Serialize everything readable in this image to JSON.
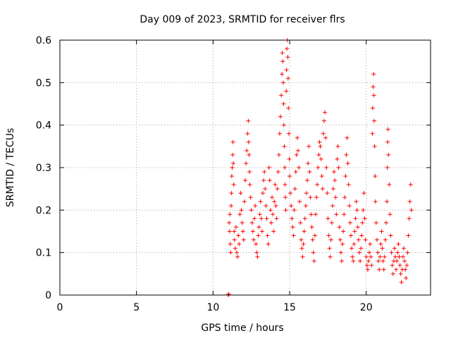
{
  "chart_data": {
    "type": "scatter",
    "title": "Day 009 of 2023, SRMTID for receiver flrs",
    "xlabel": "GPS time / hours",
    "ylabel": "SRMTID / TECUs",
    "xlim": [
      0,
      24.2
    ],
    "ylim": [
      0,
      0.6
    ],
    "x_ticks": [
      0,
      5,
      10,
      15,
      20
    ],
    "y_ticks": [
      0,
      0.1,
      0.2,
      0.3,
      0.4,
      0.5,
      0.6
    ],
    "x_tick_labels": [
      "0",
      "5",
      "10",
      "15",
      "20"
    ],
    "y_tick_labels": [
      "0",
      "0.1",
      "0.2",
      "0.3",
      "0.4",
      "0.5",
      "0.6"
    ],
    "grid": true,
    "marker": "plus",
    "marker_color": "#ff0000",
    "series": [
      {
        "name": "SRMTID",
        "points": [
          [
            11.0,
            0.0
          ],
          [
            11.0,
            0.001
          ],
          [
            11.02,
            0.002
          ],
          [
            11.05,
            0.17
          ],
          [
            11.08,
            0.15
          ],
          [
            11.1,
            0.19
          ],
          [
            11.12,
            0.12
          ],
          [
            11.15,
            0.1
          ],
          [
            11.18,
            0.21
          ],
          [
            11.2,
            0.24
          ],
          [
            11.22,
            0.28
          ],
          [
            11.25,
            0.3
          ],
          [
            11.28,
            0.33
          ],
          [
            11.3,
            0.36
          ],
          [
            11.32,
            0.31
          ],
          [
            11.35,
            0.26
          ],
          [
            11.38,
            0.15
          ],
          [
            11.4,
            0.13
          ],
          [
            11.45,
            0.11
          ],
          [
            11.5,
            0.16
          ],
          [
            11.55,
            0.1
          ],
          [
            11.6,
            0.09
          ],
          [
            11.65,
            0.14
          ],
          [
            11.7,
            0.12
          ],
          [
            11.75,
            0.19
          ],
          [
            11.8,
            0.24
          ],
          [
            11.85,
            0.2
          ],
          [
            11.9,
            0.17
          ],
          [
            11.95,
            0.15
          ],
          [
            12.0,
            0.13
          ],
          [
            12.05,
            0.22
          ],
          [
            12.1,
            0.27
          ],
          [
            12.15,
            0.31
          ],
          [
            12.2,
            0.34
          ],
          [
            12.25,
            0.38
          ],
          [
            12.3,
            0.41
          ],
          [
            12.32,
            0.36
          ],
          [
            12.35,
            0.33
          ],
          [
            12.38,
            0.29
          ],
          [
            12.4,
            0.26
          ],
          [
            12.45,
            0.23
          ],
          [
            12.5,
            0.2
          ],
          [
            12.55,
            0.17
          ],
          [
            12.6,
            0.15
          ],
          [
            12.65,
            0.13
          ],
          [
            12.7,
            0.18
          ],
          [
            12.75,
            0.21
          ],
          [
            12.8,
            0.12
          ],
          [
            12.85,
            0.1
          ],
          [
            12.9,
            0.09
          ],
          [
            12.95,
            0.14
          ],
          [
            13.0,
            0.16
          ],
          [
            13.05,
            0.19
          ],
          [
            13.1,
            0.22
          ],
          [
            13.15,
            0.18
          ],
          [
            13.2,
            0.15
          ],
          [
            13.25,
            0.24
          ],
          [
            13.3,
            0.27
          ],
          [
            13.35,
            0.29
          ],
          [
            13.4,
            0.25
          ],
          [
            13.45,
            0.21
          ],
          [
            13.5,
            0.18
          ],
          [
            13.55,
            0.14
          ],
          [
            13.6,
            0.12
          ],
          [
            13.65,
            0.3
          ],
          [
            13.7,
            0.27
          ],
          [
            13.75,
            0.2
          ],
          [
            13.8,
            0.17
          ],
          [
            13.85,
            0.23
          ],
          [
            13.9,
            0.19
          ],
          [
            13.95,
            0.15
          ],
          [
            14.0,
            0.22
          ],
          [
            14.05,
            0.26
          ],
          [
            14.1,
            0.21
          ],
          [
            14.15,
            0.18
          ],
          [
            14.2,
            0.25
          ],
          [
            14.25,
            0.29
          ],
          [
            14.3,
            0.33
          ],
          [
            14.35,
            0.38
          ],
          [
            14.4,
            0.42
          ],
          [
            14.45,
            0.47
          ],
          [
            14.5,
            0.52
          ],
          [
            14.52,
            0.57
          ],
          [
            14.55,
            0.55
          ],
          [
            14.58,
            0.5
          ],
          [
            14.6,
            0.45
          ],
          [
            14.62,
            0.4
          ],
          [
            14.65,
            0.35
          ],
          [
            14.68,
            0.3
          ],
          [
            14.7,
            0.26
          ],
          [
            14.72,
            0.23
          ],
          [
            14.75,
            0.2
          ],
          [
            14.78,
            0.48
          ],
          [
            14.8,
            0.53
          ],
          [
            14.82,
            0.58
          ],
          [
            14.85,
            0.6
          ],
          [
            14.88,
            0.56
          ],
          [
            14.9,
            0.51
          ],
          [
            14.92,
            0.44
          ],
          [
            14.95,
            0.38
          ],
          [
            14.98,
            0.32
          ],
          [
            15.0,
            0.28
          ],
          [
            15.05,
            0.24
          ],
          [
            15.1,
            0.21
          ],
          [
            15.15,
            0.18
          ],
          [
            15.2,
            0.16
          ],
          [
            15.25,
            0.14
          ],
          [
            15.3,
            0.2
          ],
          [
            15.35,
            0.25
          ],
          [
            15.4,
            0.29
          ],
          [
            15.45,
            0.33
          ],
          [
            15.5,
            0.37
          ],
          [
            15.55,
            0.34
          ],
          [
            15.6,
            0.3
          ],
          [
            15.65,
            0.22
          ],
          [
            15.7,
            0.17
          ],
          [
            15.75,
            0.13
          ],
          [
            15.8,
            0.11
          ],
          [
            15.85,
            0.09
          ],
          [
            15.9,
            0.12
          ],
          [
            15.95,
            0.15
          ],
          [
            16.0,
            0.18
          ],
          [
            16.05,
            0.21
          ],
          [
            16.1,
            0.24
          ],
          [
            16.15,
            0.27
          ],
          [
            16.2,
            0.31
          ],
          [
            16.25,
            0.35
          ],
          [
            16.3,
            0.29
          ],
          [
            16.35,
            0.23
          ],
          [
            16.4,
            0.19
          ],
          [
            16.45,
            0.16
          ],
          [
            16.5,
            0.13
          ],
          [
            16.55,
            0.1
          ],
          [
            16.6,
            0.08
          ],
          [
            16.65,
            0.14
          ],
          [
            16.7,
            0.19
          ],
          [
            16.75,
            0.23
          ],
          [
            16.8,
            0.26
          ],
          [
            16.85,
            0.3
          ],
          [
            16.9,
            0.33
          ],
          [
            16.95,
            0.36
          ],
          [
            17.0,
            0.35
          ],
          [
            17.05,
            0.32
          ],
          [
            17.1,
            0.28
          ],
          [
            17.15,
            0.25
          ],
          [
            17.2,
            0.38
          ],
          [
            17.25,
            0.41
          ],
          [
            17.3,
            0.43
          ],
          [
            17.35,
            0.37
          ],
          [
            17.4,
            0.3
          ],
          [
            17.45,
            0.24
          ],
          [
            17.5,
            0.18
          ],
          [
            17.55,
            0.14
          ],
          [
            17.6,
            0.11
          ],
          [
            17.65,
            0.09
          ],
          [
            17.7,
            0.13
          ],
          [
            17.75,
            0.17
          ],
          [
            17.8,
            0.21
          ],
          [
            17.85,
            0.25
          ],
          [
            17.9,
            0.29
          ],
          [
            17.95,
            0.27
          ],
          [
            18.0,
            0.23
          ],
          [
            18.05,
            0.19
          ],
          [
            18.1,
            0.32
          ],
          [
            18.15,
            0.35
          ],
          [
            18.2,
            0.3
          ],
          [
            18.25,
            0.16
          ],
          [
            18.3,
            0.13
          ],
          [
            18.35,
            0.1
          ],
          [
            18.4,
            0.08
          ],
          [
            18.45,
            0.12
          ],
          [
            18.5,
            0.15
          ],
          [
            18.55,
            0.19
          ],
          [
            18.6,
            0.23
          ],
          [
            18.65,
            0.28
          ],
          [
            18.7,
            0.33
          ],
          [
            18.75,
            0.37
          ],
          [
            18.8,
            0.31
          ],
          [
            18.85,
            0.26
          ],
          [
            18.9,
            0.21
          ],
          [
            18.95,
            0.17
          ],
          [
            19.0,
            0.14
          ],
          [
            19.05,
            0.11
          ],
          [
            19.1,
            0.09
          ],
          [
            19.15,
            0.08
          ],
          [
            19.2,
            0.12
          ],
          [
            19.25,
            0.15
          ],
          [
            19.3,
            0.18
          ],
          [
            19.35,
            0.22
          ],
          [
            19.4,
            0.2
          ],
          [
            19.45,
            0.16
          ],
          [
            19.5,
            0.13
          ],
          [
            19.55,
            0.1
          ],
          [
            19.6,
            0.08
          ],
          [
            19.65,
            0.11
          ],
          [
            19.7,
            0.14
          ],
          [
            19.75,
            0.17
          ],
          [
            19.8,
            0.2
          ],
          [
            19.85,
            0.24
          ],
          [
            19.9,
            0.18
          ],
          [
            19.95,
            0.13
          ],
          [
            20.0,
            0.09
          ],
          [
            20.05,
            0.07
          ],
          [
            20.1,
            0.06
          ],
          [
            20.15,
            0.08
          ],
          [
            20.2,
            0.1
          ],
          [
            20.25,
            0.12
          ],
          [
            20.3,
            0.09
          ],
          [
            20.35,
            0.07
          ],
          [
            20.4,
            0.38
          ],
          [
            20.42,
            0.44
          ],
          [
            20.45,
            0.49
          ],
          [
            20.48,
            0.52
          ],
          [
            20.5,
            0.47
          ],
          [
            20.52,
            0.41
          ],
          [
            20.55,
            0.35
          ],
          [
            20.58,
            0.28
          ],
          [
            20.6,
            0.22
          ],
          [
            20.65,
            0.17
          ],
          [
            20.7,
            0.13
          ],
          [
            20.75,
            0.1
          ],
          [
            20.8,
            0.08
          ],
          [
            20.85,
            0.06
          ],
          [
            20.9,
            0.09
          ],
          [
            20.95,
            0.12
          ],
          [
            21.0,
            0.15
          ],
          [
            21.05,
            0.11
          ],
          [
            21.1,
            0.08
          ],
          [
            21.15,
            0.06
          ],
          [
            21.2,
            0.09
          ],
          [
            21.25,
            0.13
          ],
          [
            21.3,
            0.17
          ],
          [
            21.35,
            0.22
          ],
          [
            21.38,
            0.3
          ],
          [
            21.4,
            0.36
          ],
          [
            21.42,
            0.39
          ],
          [
            21.45,
            0.33
          ],
          [
            21.5,
            0.26
          ],
          [
            21.55,
            0.19
          ],
          [
            21.6,
            0.14
          ],
          [
            21.65,
            0.1
          ],
          [
            21.7,
            0.07
          ],
          [
            21.75,
            0.05
          ],
          [
            21.8,
            0.08
          ],
          [
            21.85,
            0.11
          ],
          [
            21.9,
            0.09
          ],
          [
            21.95,
            0.06
          ],
          [
            22.0,
            0.08
          ],
          [
            22.05,
            0.1
          ],
          [
            22.1,
            0.12
          ],
          [
            22.15,
            0.09
          ],
          [
            22.2,
            0.07
          ],
          [
            22.25,
            0.05
          ],
          [
            22.3,
            0.03
          ],
          [
            22.35,
            0.06
          ],
          [
            22.4,
            0.09
          ],
          [
            22.45,
            0.11
          ],
          [
            22.5,
            0.08
          ],
          [
            22.55,
            0.06
          ],
          [
            22.6,
            0.04
          ],
          [
            22.65,
            0.07
          ],
          [
            22.7,
            0.1
          ],
          [
            22.75,
            0.14
          ],
          [
            22.8,
            0.18
          ],
          [
            22.85,
            0.22
          ],
          [
            22.9,
            0.26
          ],
          [
            22.95,
            0.2
          ]
        ]
      }
    ]
  }
}
